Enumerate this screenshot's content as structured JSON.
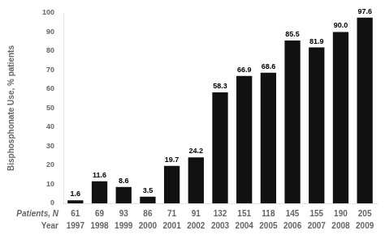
{
  "chart_data": {
    "type": "bar",
    "categories": [
      "1997",
      "1998",
      "1999",
      "2000",
      "2001",
      "2002",
      "2003",
      "2004",
      "2005",
      "2006",
      "2007",
      "2008",
      "2009"
    ],
    "values": [
      1.6,
      11.6,
      8.6,
      3.5,
      19.7,
      24.2,
      58.3,
      66.9,
      68.6,
      85.5,
      81.9,
      90.0,
      97.6
    ],
    "value_labels": [
      "1.6",
      "11.6",
      "8.6",
      "3.5",
      "19.7",
      "24.2",
      "58.3",
      "66.9",
      "68.6",
      "85.5",
      "81.9",
      "90.0",
      "97.6"
    ],
    "patients": [
      61,
      69,
      93,
      86,
      71,
      91,
      132,
      151,
      118,
      145,
      155,
      190,
      205
    ],
    "patients_label": "Patients, N",
    "xlabel": "Year",
    "ylabel": "Bisphosphonate Use, % patients",
    "color": "#111111",
    "ylim": [
      0,
      100
    ],
    "yticks": [
      0,
      10,
      20,
      30,
      40,
      50,
      60,
      70,
      80,
      90,
      100
    ],
    "data_labels": true,
    "grid": false,
    "tick_labels": "y"
  }
}
